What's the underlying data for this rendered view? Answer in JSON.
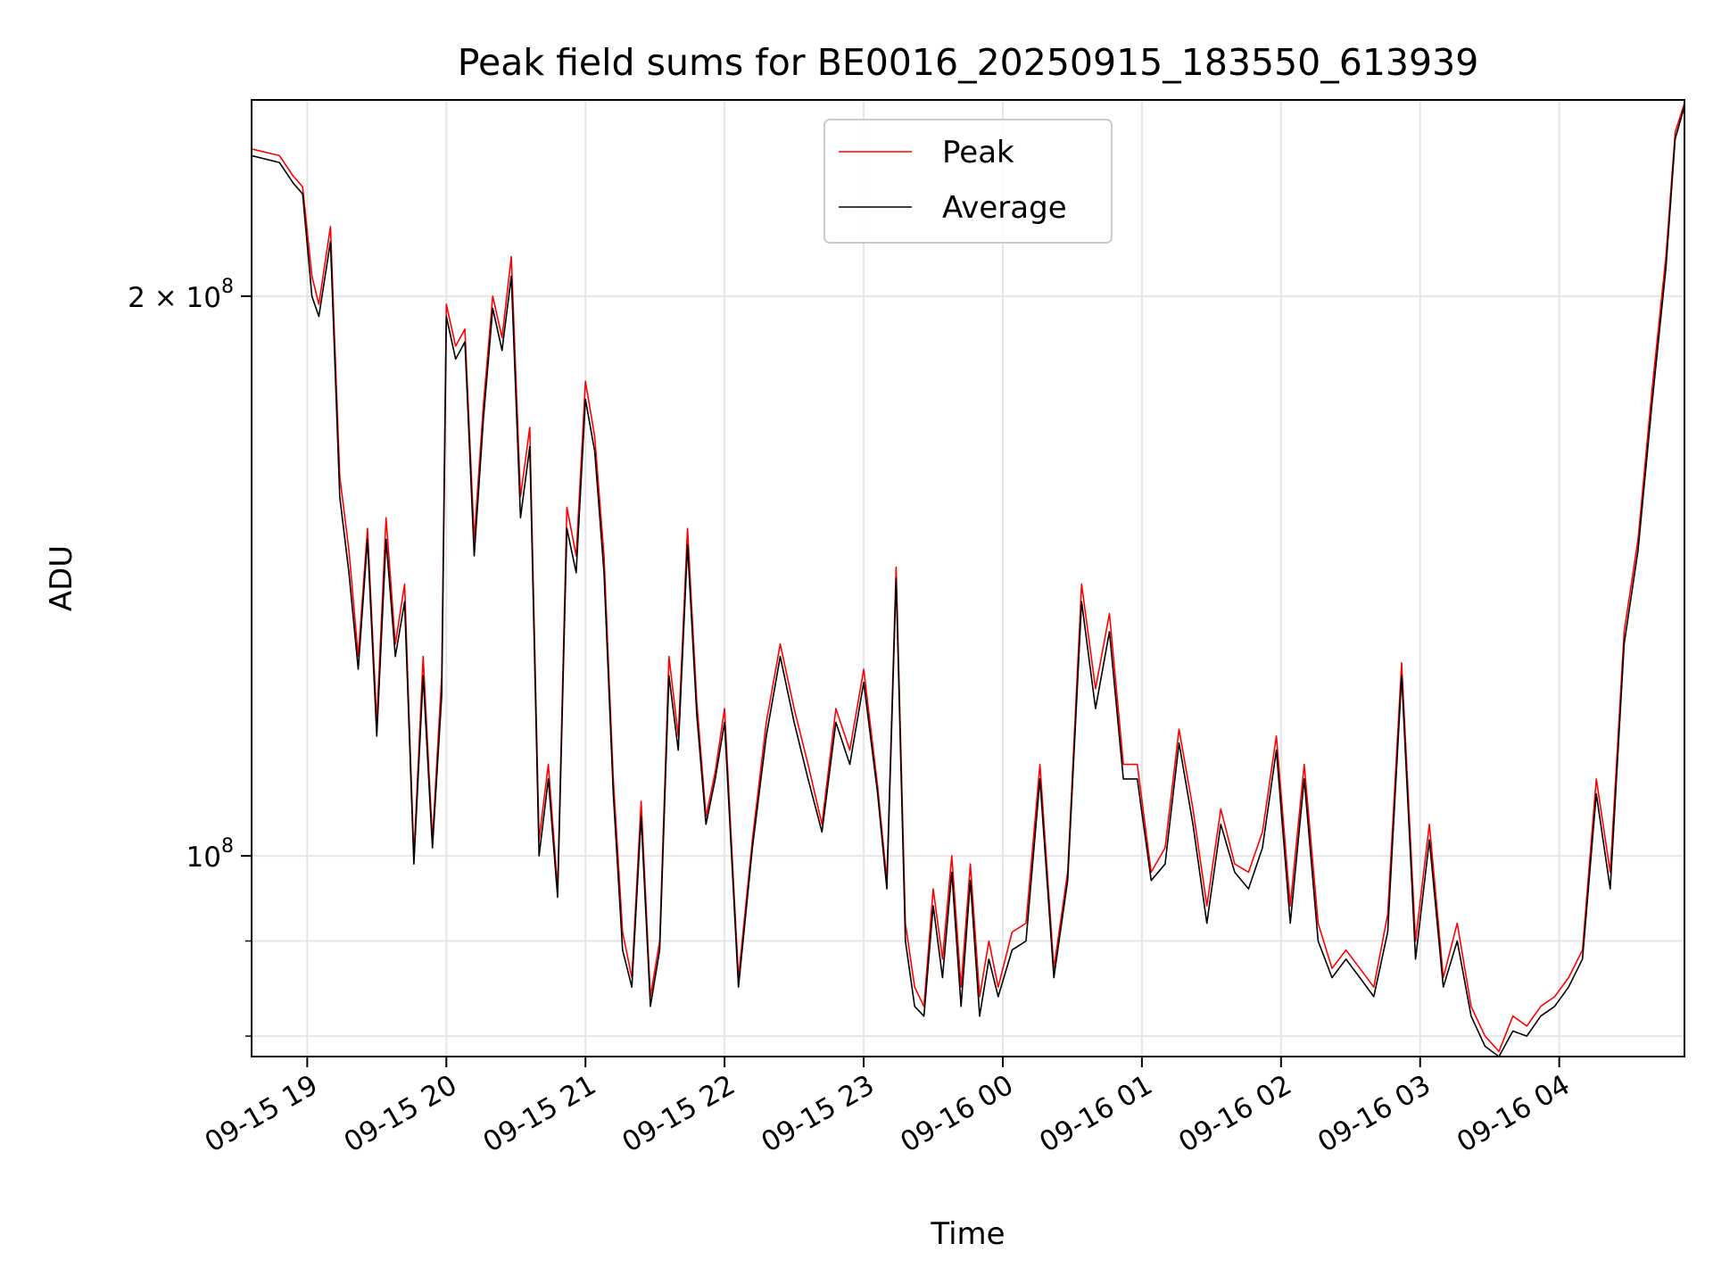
{
  "chart_data": {
    "type": "line",
    "title": "Peak field sums for BE0016_20250915_183550_613939",
    "xlabel": "Time",
    "ylabel": "ADU",
    "y_scale": "log",
    "xlim": [
      "2025-09-15T18:36",
      "2025-09-16T04:54"
    ],
    "ylim": [
      78000000,
      255000000
    ],
    "grid": true,
    "legend_position": "top-center",
    "x_ticks": [
      "09-15 19",
      "09-15 20",
      "09-15 21",
      "09-15 22",
      "09-15 23",
      "09-16 00",
      "09-16 01",
      "09-16 02",
      "09-16 03",
      "09-16 04"
    ],
    "x_tick_times": [
      "2025-09-15T19:00",
      "2025-09-15T20:00",
      "2025-09-15T21:00",
      "2025-09-15T22:00",
      "2025-09-15T23:00",
      "2025-09-16T00:00",
      "2025-09-16T01:00",
      "2025-09-16T02:00",
      "2025-09-16T03:00",
      "2025-09-16T04:00"
    ],
    "y_ticks": [
      {
        "value": 100000000,
        "base": "10",
        "exp": "8",
        "coef": ""
      },
      {
        "value": 200000000,
        "base": "10",
        "exp": "8",
        "coef": "2 × "
      }
    ],
    "y_minor_ticks": [
      80000000,
      90000000
    ],
    "x": [
      "2025-09-15T18:36",
      "2025-09-15T18:48",
      "2025-09-15T18:54",
      "2025-09-15T18:58",
      "2025-09-15T19:02",
      "2025-09-15T19:05",
      "2025-09-15T19:10",
      "2025-09-15T19:14",
      "2025-09-15T19:18",
      "2025-09-15T19:22",
      "2025-09-15T19:26",
      "2025-09-15T19:30",
      "2025-09-15T19:34",
      "2025-09-15T19:38",
      "2025-09-15T19:42",
      "2025-09-15T19:46",
      "2025-09-15T19:50",
      "2025-09-15T19:54",
      "2025-09-15T19:58",
      "2025-09-15T20:00",
      "2025-09-15T20:04",
      "2025-09-15T20:08",
      "2025-09-15T20:12",
      "2025-09-15T20:16",
      "2025-09-15T20:20",
      "2025-09-15T20:24",
      "2025-09-15T20:28",
      "2025-09-15T20:32",
      "2025-09-15T20:36",
      "2025-09-15T20:40",
      "2025-09-15T20:44",
      "2025-09-15T20:48",
      "2025-09-15T20:52",
      "2025-09-15T20:56",
      "2025-09-15T21:00",
      "2025-09-15T21:04",
      "2025-09-15T21:08",
      "2025-09-15T21:12",
      "2025-09-15T21:16",
      "2025-09-15T21:20",
      "2025-09-15T21:24",
      "2025-09-15T21:28",
      "2025-09-15T21:32",
      "2025-09-15T21:36",
      "2025-09-15T21:40",
      "2025-09-15T21:44",
      "2025-09-15T21:48",
      "2025-09-15T21:52",
      "2025-09-15T21:56",
      "2025-09-15T22:00",
      "2025-09-15T22:06",
      "2025-09-15T22:12",
      "2025-09-15T22:18",
      "2025-09-15T22:24",
      "2025-09-15T22:30",
      "2025-09-15T22:36",
      "2025-09-15T22:42",
      "2025-09-15T22:48",
      "2025-09-15T22:54",
      "2025-09-15T23:00",
      "2025-09-15T23:06",
      "2025-09-15T23:10",
      "2025-09-15T23:14",
      "2025-09-15T23:18",
      "2025-09-15T23:22",
      "2025-09-15T23:26",
      "2025-09-15T23:30",
      "2025-09-15T23:34",
      "2025-09-15T23:38",
      "2025-09-15T23:42",
      "2025-09-15T23:46",
      "2025-09-15T23:50",
      "2025-09-15T23:54",
      "2025-09-15T23:58",
      "2025-09-16T00:04",
      "2025-09-16T00:10",
      "2025-09-16T00:16",
      "2025-09-16T00:22",
      "2025-09-16T00:28",
      "2025-09-16T00:34",
      "2025-09-16T00:40",
      "2025-09-16T00:46",
      "2025-09-16T00:52",
      "2025-09-16T00:58",
      "2025-09-16T01:04",
      "2025-09-16T01:10",
      "2025-09-16T01:16",
      "2025-09-16T01:22",
      "2025-09-16T01:28",
      "2025-09-16T01:34",
      "2025-09-16T01:40",
      "2025-09-16T01:46",
      "2025-09-16T01:52",
      "2025-09-16T01:58",
      "2025-09-16T02:04",
      "2025-09-16T02:10",
      "2025-09-16T02:16",
      "2025-09-16T02:22",
      "2025-09-16T02:28",
      "2025-09-16T02:34",
      "2025-09-16T02:40",
      "2025-09-16T02:46",
      "2025-09-16T02:52",
      "2025-09-16T02:58",
      "2025-09-16T03:04",
      "2025-09-16T03:10",
      "2025-09-16T03:16",
      "2025-09-16T03:22",
      "2025-09-16T03:28",
      "2025-09-16T03:34",
      "2025-09-16T03:40",
      "2025-09-16T03:46",
      "2025-09-16T03:52",
      "2025-09-16T03:58",
      "2025-09-16T04:04",
      "2025-09-16T04:10",
      "2025-09-16T04:16",
      "2025-09-16T04:22",
      "2025-09-16T04:28",
      "2025-09-16T04:34",
      "2025-09-16T04:40",
      "2025-09-16T04:46",
      "2025-09-16T04:50",
      "2025-09-16T04:54"
    ],
    "series": [
      {
        "name": "Peak",
        "color": "#ff0000",
        "values": [
          240000000,
          238000000,
          232000000,
          229000000,
          205000000,
          198000000,
          218000000,
          160000000,
          146000000,
          128000000,
          150000000,
          118000000,
          152000000,
          130000000,
          140000000,
          100000000,
          128000000,
          102000000,
          125000000,
          198000000,
          188000000,
          192000000,
          148000000,
          175000000,
          200000000,
          190000000,
          210000000,
          156000000,
          170000000,
          102000000,
          112000000,
          96000000,
          154000000,
          145000000,
          180000000,
          168000000,
          145000000,
          110000000,
          91000000,
          86000000,
          107000000,
          84000000,
          90000000,
          128000000,
          116000000,
          150000000,
          121000000,
          105000000,
          111000000,
          120000000,
          86000000,
          102000000,
          118000000,
          130000000,
          120000000,
          112000000,
          104000000,
          120000000,
          114000000,
          126000000,
          109000000,
          97000000,
          143000000,
          92000000,
          85000000,
          83000000,
          96000000,
          88000000,
          100000000,
          85000000,
          99000000,
          84000000,
          90000000,
          85000000,
          91000000,
          92000000,
          112000000,
          87000000,
          98000000,
          140000000,
          123000000,
          135000000,
          112000000,
          112000000,
          98000000,
          101000000,
          117000000,
          106000000,
          94000000,
          106000000,
          99000000,
          98000000,
          103000000,
          116000000,
          94000000,
          112000000,
          92000000,
          87000000,
          89000000,
          87000000,
          85000000,
          93000000,
          127000000,
          90000000,
          104000000,
          86000000,
          92000000,
          83000000,
          80000000,
          78500000,
          82000000,
          81000000,
          83000000,
          84000000,
          86000000,
          89000000,
          110000000,
          98000000,
          132000000,
          148000000,
          178000000,
          210000000,
          245000000,
          254000000
        ]
      },
      {
        "name": "Average",
        "color": "#000000",
        "values": [
          238000000,
          236000000,
          230000000,
          227000000,
          200000000,
          195000000,
          214000000,
          156000000,
          142000000,
          126000000,
          148000000,
          116000000,
          148000000,
          128000000,
          137000000,
          99000000,
          125000000,
          101000000,
          122000000,
          195000000,
          185000000,
          189000000,
          145000000,
          172000000,
          197000000,
          187000000,
          205000000,
          152000000,
          166000000,
          100000000,
          110000000,
          95000000,
          150000000,
          142000000,
          176000000,
          165000000,
          142000000,
          108000000,
          89000000,
          85000000,
          105000000,
          83000000,
          89000000,
          125000000,
          114000000,
          147000000,
          119000000,
          104000000,
          110000000,
          118000000,
          85000000,
          101000000,
          116000000,
          128000000,
          118000000,
          110000000,
          103000000,
          118000000,
          112000000,
          124000000,
          108000000,
          96000000,
          141000000,
          90000000,
          83000000,
          82000000,
          94000000,
          86000000,
          98000000,
          83000000,
          97000000,
          82000000,
          88000000,
          84000000,
          89000000,
          90000000,
          110000000,
          86000000,
          97000000,
          137000000,
          120000000,
          132000000,
          110000000,
          110000000,
          97000000,
          99000000,
          115000000,
          104000000,
          92000000,
          104000000,
          98000000,
          96000000,
          101000000,
          114000000,
          92000000,
          110000000,
          90000000,
          86000000,
          88000000,
          86000000,
          84000000,
          91000000,
          125000000,
          88000000,
          102000000,
          85000000,
          90000000,
          82000000,
          79000000,
          78000000,
          80500000,
          80000000,
          82000000,
          83000000,
          85000000,
          88000000,
          108000000,
          96000000,
          130000000,
          146000000,
          175000000,
          207000000,
          243000000,
          253000000
        ]
      }
    ]
  }
}
